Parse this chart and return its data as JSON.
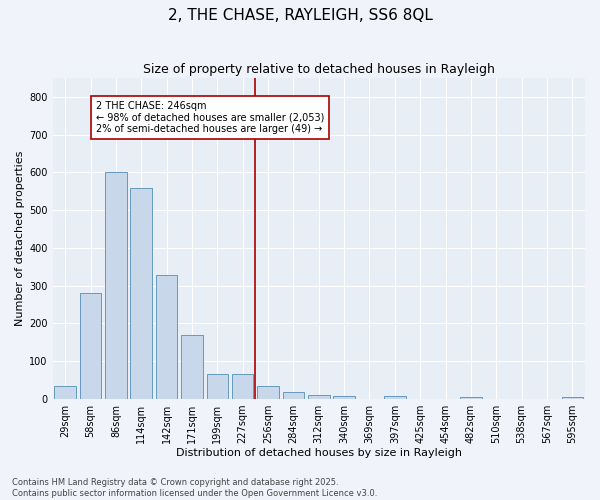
{
  "title": "2, THE CHASE, RAYLEIGH, SS6 8QL",
  "subtitle": "Size of property relative to detached houses in Rayleigh",
  "xlabel": "Distribution of detached houses by size in Rayleigh",
  "ylabel": "Number of detached properties",
  "bar_labels": [
    "29sqm",
    "58sqm",
    "86sqm",
    "114sqm",
    "142sqm",
    "171sqm",
    "199sqm",
    "227sqm",
    "256sqm",
    "284sqm",
    "312sqm",
    "340sqm",
    "369sqm",
    "397sqm",
    "425sqm",
    "454sqm",
    "482sqm",
    "510sqm",
    "538sqm",
    "567sqm",
    "595sqm"
  ],
  "bar_values": [
    35,
    280,
    600,
    560,
    328,
    170,
    65,
    65,
    35,
    18,
    10,
    8,
    0,
    7,
    0,
    0,
    5,
    0,
    0,
    0,
    5
  ],
  "bar_color": "#c8d8ea",
  "bar_edge_color": "#6699bb",
  "ylim": [
    0,
    850
  ],
  "yticks": [
    0,
    100,
    200,
    300,
    400,
    500,
    600,
    700,
    800
  ],
  "vline_color": "#aa0000",
  "annotation_text": "2 THE CHASE: 246sqm\n← 98% of detached houses are smaller (2,053)\n2% of semi-detached houses are larger (49) →",
  "annotation_box_color": "#aa0000",
  "footer_text": "Contains HM Land Registry data © Crown copyright and database right 2025.\nContains public sector information licensed under the Open Government Licence v3.0.",
  "bg_color": "#e8eef5",
  "grid_color": "#ffffff",
  "fig_bg": "#f0f4fa",
  "title_fontsize": 11,
  "subtitle_fontsize": 9,
  "axis_label_fontsize": 8,
  "tick_fontsize": 7,
  "footer_fontsize": 6,
  "annotation_fontsize": 7
}
